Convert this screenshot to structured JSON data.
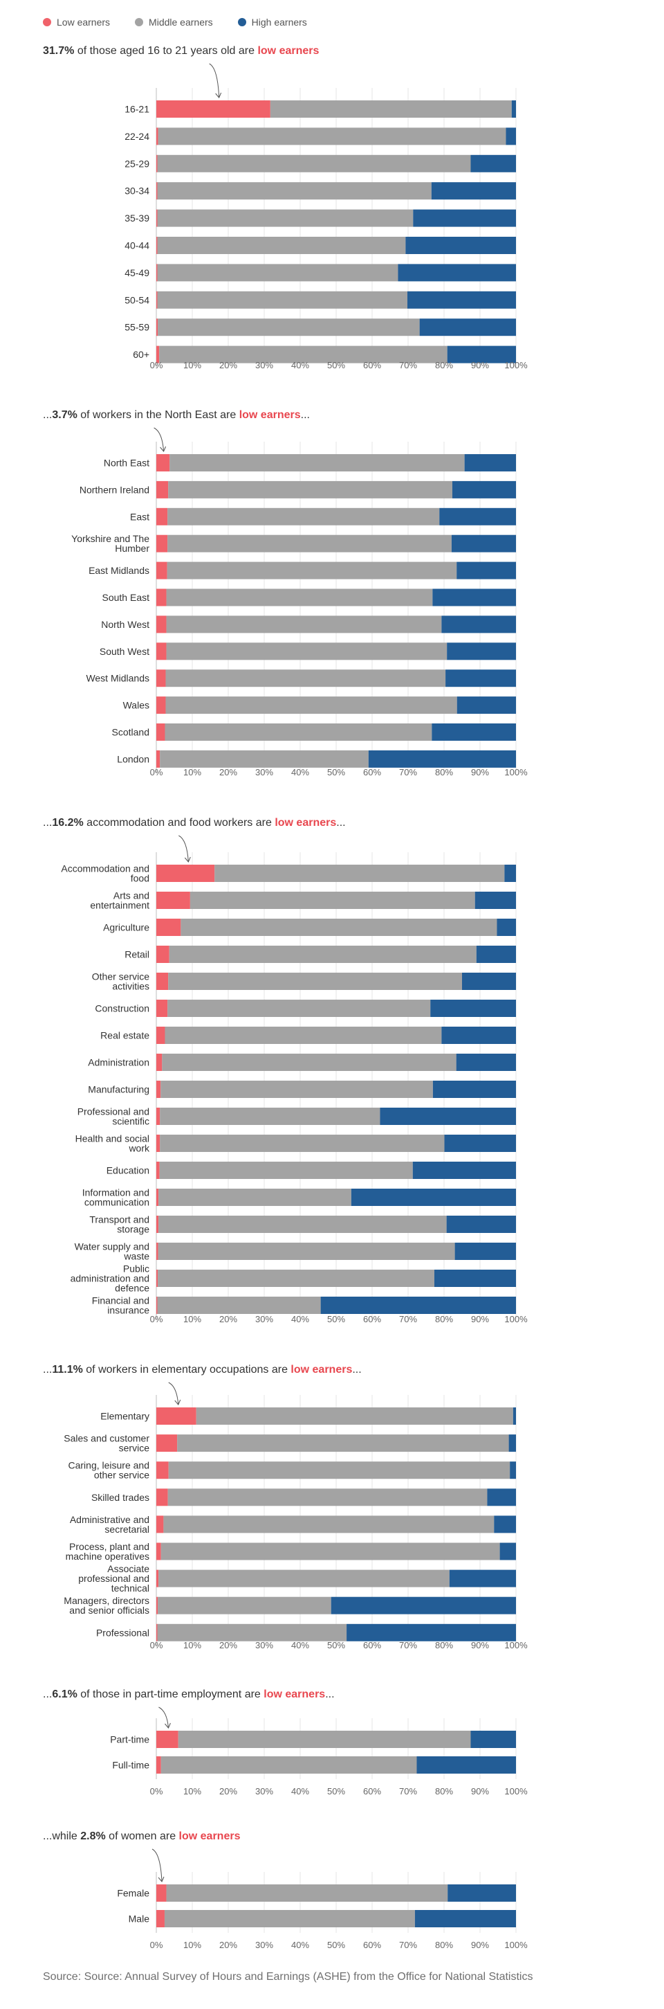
{
  "legend": {
    "low": "Low earners",
    "middle": "Middle earners",
    "high": "High earners"
  },
  "colors": {
    "low": "#f0626a",
    "middle": "#a3a3a3",
    "high": "#235d96",
    "highlight": "#e8474f"
  },
  "axis_ticks": [
    "0%",
    "10%",
    "20%",
    "30%",
    "40%",
    "50%",
    "60%",
    "70%",
    "80%",
    "90%",
    "100%"
  ],
  "source": "Source: Source: Annual Survey of Hours and Earnings (ASHE) from the Office for National Statistics",
  "chart_data": [
    {
      "type": "bar",
      "stacked": true,
      "orientation": "horizontal",
      "title_prefix": "",
      "title_bold": "31.7%",
      "title_middle": " of those aged 16 to 21 years old are ",
      "title_highlight": "low earners",
      "title_suffix": "",
      "categories": [
        "16-21",
        "22-24",
        "25-29",
        "30-34",
        "35-39",
        "40-44",
        "45-49",
        "50-54",
        "55-59",
        "60+"
      ],
      "series": [
        {
          "name": "Low earners",
          "values": [
            31.7,
            0.5,
            0.3,
            0.3,
            0.3,
            0.3,
            0.3,
            0.3,
            0.4,
            0.8
          ]
        },
        {
          "name": "Middle earners",
          "values": [
            67.1,
            96.7,
            87.1,
            76.2,
            71.1,
            69.0,
            66.9,
            69.5,
            72.8,
            80.1
          ]
        },
        {
          "name": "High earners",
          "values": [
            1.2,
            2.8,
            12.6,
            23.5,
            28.6,
            30.7,
            32.8,
            30.2,
            26.8,
            19.1
          ]
        }
      ],
      "xlim": [
        0,
        100
      ]
    },
    {
      "type": "bar",
      "stacked": true,
      "orientation": "horizontal",
      "title_prefix": "...",
      "title_bold": "3.7%",
      "title_middle": " of workers in the North East are ",
      "title_highlight": "low earners",
      "title_suffix": "...",
      "categories": [
        "North East",
        "Northern Ireland",
        "East",
        "Yorkshire and The Humber",
        "East Midlands",
        "South East",
        "North West",
        "South West",
        "West Midlands",
        "Wales",
        "Scotland",
        "London"
      ],
      "series": [
        {
          "name": "Low earners",
          "values": [
            3.7,
            3.3,
            3.1,
            3.1,
            3.0,
            2.8,
            2.8,
            2.8,
            2.6,
            2.6,
            2.4,
            1.0
          ]
        },
        {
          "name": "Middle earners",
          "values": [
            82.0,
            79.0,
            75.6,
            79.0,
            80.5,
            74.0,
            76.5,
            78.0,
            77.8,
            81.0,
            74.2,
            58.0
          ]
        },
        {
          "name": "High earners",
          "values": [
            14.3,
            17.7,
            21.3,
            17.9,
            16.5,
            23.2,
            20.7,
            19.2,
            19.6,
            16.4,
            23.4,
            41.0
          ]
        }
      ],
      "xlim": [
        0,
        100
      ]
    },
    {
      "type": "bar",
      "stacked": true,
      "orientation": "horizontal",
      "title_prefix": "...",
      "title_bold": "16.2%",
      "title_middle": " accommodation and food workers are ",
      "title_highlight": "low earners",
      "title_suffix": "...",
      "categories": [
        "Accommodation and food",
        "Arts and entertainment",
        "Agriculture",
        "Retail",
        "Other service activities",
        "Construction",
        "Real estate",
        "Administration",
        "Manufacturing",
        "Professional and scientific",
        "Health and social work",
        "Education",
        "Information and communication",
        "Transport and storage",
        "Water supply and waste",
        "Public administration and defence",
        "Financial and insurance"
      ],
      "series": [
        {
          "name": "Low earners",
          "values": [
            16.2,
            9.4,
            6.8,
            3.6,
            3.3,
            3.1,
            2.4,
            1.6,
            1.2,
            1.0,
            1.0,
            0.9,
            0.6,
            0.6,
            0.5,
            0.4,
            0.3
          ]
        },
        {
          "name": "Middle earners",
          "values": [
            80.6,
            79.2,
            87.9,
            85.4,
            81.7,
            73.1,
            76.9,
            81.8,
            75.7,
            61.2,
            79.1,
            70.4,
            53.6,
            80.1,
            82.5,
            76.9,
            45.4
          ]
        },
        {
          "name": "High earners",
          "values": [
            3.2,
            11.4,
            5.3,
            11.0,
            15.0,
            23.8,
            20.7,
            16.6,
            23.1,
            37.8,
            19.9,
            28.7,
            45.8,
            19.3,
            17.0,
            22.7,
            54.3
          ]
        }
      ],
      "xlim": [
        0,
        100
      ]
    },
    {
      "type": "bar",
      "stacked": true,
      "orientation": "horizontal",
      "title_prefix": "...",
      "title_bold": "11.1%",
      "title_middle": " of workers in elementary occupations are ",
      "title_highlight": "low earners",
      "title_suffix": "...",
      "categories": [
        "Elementary",
        "Sales and customer service",
        "Caring, leisure and other service",
        "Skilled trades",
        "Administrative and secretarial",
        "Process, plant and machine operatives",
        "Associate professional and technical",
        "Managers, directors and senior officials",
        "Professional"
      ],
      "series": [
        {
          "name": "Low earners",
          "values": [
            11.1,
            5.8,
            3.4,
            3.2,
            2.0,
            1.3,
            0.6,
            0.4,
            0.3
          ]
        },
        {
          "name": "Middle earners",
          "values": [
            88.1,
            92.2,
            94.9,
            88.8,
            91.9,
            94.2,
            80.9,
            48.2,
            52.6
          ]
        },
        {
          "name": "High earners",
          "values": [
            0.8,
            2.0,
            1.7,
            8.0,
            6.1,
            4.5,
            18.5,
            51.4,
            47.1
          ]
        }
      ],
      "xlim": [
        0,
        100
      ]
    },
    {
      "type": "bar",
      "stacked": true,
      "orientation": "horizontal",
      "title_prefix": "...",
      "title_bold": "6.1%",
      "title_middle": " of those in part-time employment are ",
      "title_highlight": "low earners",
      "title_suffix": "...",
      "categories": [
        "Part-time",
        "Full-time"
      ],
      "series": [
        {
          "name": "Low earners",
          "values": [
            6.1,
            1.3
          ]
        },
        {
          "name": "Middle earners",
          "values": [
            81.3,
            71.1
          ]
        },
        {
          "name": "High earners",
          "values": [
            12.6,
            27.6
          ]
        }
      ],
      "xlim": [
        0,
        100
      ]
    },
    {
      "type": "bar",
      "stacked": true,
      "orientation": "horizontal",
      "title_prefix": "...while ",
      "title_bold": "2.8%",
      "title_middle": " of women are ",
      "title_highlight": "low earners",
      "title_suffix": "",
      "categories": [
        "Female",
        "Male"
      ],
      "series": [
        {
          "name": "Low earners",
          "values": [
            2.8,
            2.3
          ]
        },
        {
          "name": "Middle earners",
          "values": [
            78.2,
            69.6
          ]
        },
        {
          "name": "High earners",
          "values": [
            19.0,
            28.1
          ]
        }
      ],
      "xlim": [
        0,
        100
      ]
    }
  ]
}
